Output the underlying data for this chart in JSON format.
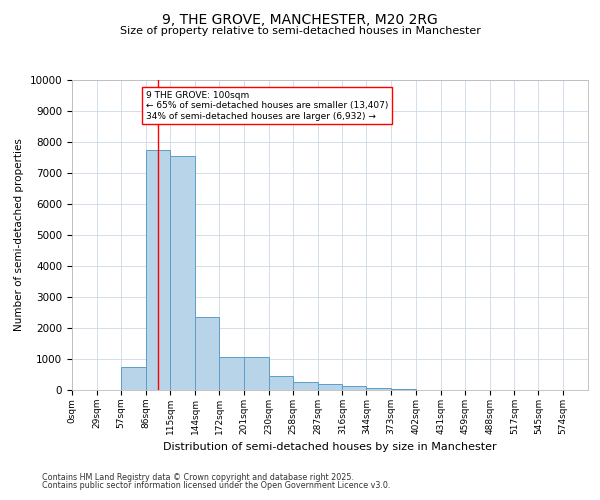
{
  "title": "9, THE GROVE, MANCHESTER, M20 2RG",
  "subtitle": "Size of property relative to semi-detached houses in Manchester",
  "xlabel": "Distribution of semi-detached houses by size in Manchester",
  "ylabel": "Number of semi-detached properties",
  "bin_labels": [
    "0sqm",
    "29sqm",
    "57sqm",
    "86sqm",
    "115sqm",
    "144sqm",
    "172sqm",
    "201sqm",
    "230sqm",
    "258sqm",
    "287sqm",
    "316sqm",
    "344sqm",
    "373sqm",
    "402sqm",
    "431sqm",
    "459sqm",
    "488sqm",
    "517sqm",
    "545sqm",
    "574sqm"
  ],
  "bar_values": [
    0,
    0,
    750,
    7750,
    7550,
    2350,
    1050,
    1050,
    450,
    250,
    200,
    130,
    50,
    30,
    10,
    5,
    2,
    2,
    1,
    1,
    0
  ],
  "bar_color": "#b8d4e8",
  "bar_edge_color": "#5b9ec9",
  "property_line_x": 100,
  "annotation_text_line1": "9 THE GROVE: 100sqm",
  "annotation_text_line2": "← 65% of semi-detached houses are smaller (13,407)",
  "annotation_text_line3": "34% of semi-detached houses are larger (6,932) →",
  "ylim": [
    0,
    10000
  ],
  "yticks": [
    0,
    1000,
    2000,
    3000,
    4000,
    5000,
    6000,
    7000,
    8000,
    9000,
    10000
  ],
  "bin_edges": [
    0,
    29,
    57,
    86,
    115,
    144,
    172,
    201,
    230,
    258,
    287,
    316,
    344,
    373,
    402,
    431,
    459,
    488,
    517,
    545,
    574,
    603
  ],
  "footnote1": "Contains HM Land Registry data © Crown copyright and database right 2025.",
  "footnote2": "Contains public sector information licensed under the Open Government Licence v3.0."
}
